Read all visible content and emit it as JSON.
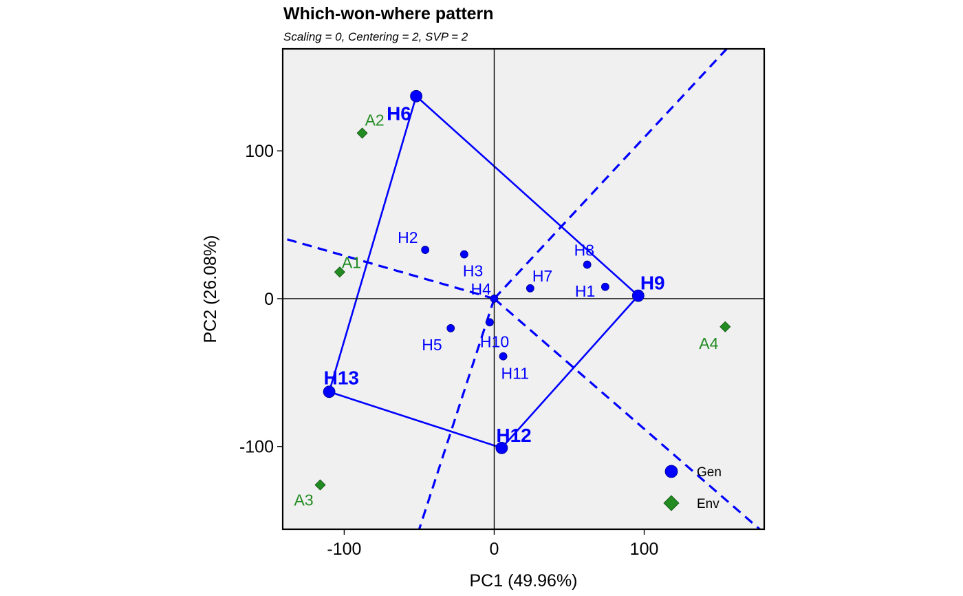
{
  "chart_data": {
    "type": "scatter",
    "title": "Which-won-where pattern",
    "subtitle": "Scaling = 0, Centering = 2, SVP = 2",
    "xlabel": "PC1 (49.96%)",
    "ylabel": "PC2 (26.08%)",
    "xlim": [
      -141,
      180
    ],
    "ylim": [
      -156,
      169
    ],
    "xticks": [
      -100,
      0,
      100
    ],
    "yticks": [
      -100,
      0,
      100
    ],
    "grid": false,
    "legend_position": "bottom-right",
    "colors": {
      "gen": "#0000ff",
      "env": "#228b22",
      "panel": "#f0f0f0"
    },
    "legend": [
      {
        "label": "Gen",
        "marker": "circle"
      },
      {
        "label": "Env",
        "marker": "diamond"
      }
    ],
    "series": [
      {
        "name": "Gen",
        "points": [
          {
            "label": "H1",
            "x": 74,
            "y": 8,
            "vertex": false
          },
          {
            "label": "H2",
            "x": -46,
            "y": 33,
            "vertex": false
          },
          {
            "label": "H3",
            "x": -20,
            "y": 30,
            "vertex": false
          },
          {
            "label": "H4",
            "x": 0,
            "y": 0,
            "vertex": false
          },
          {
            "label": "H5",
            "x": -29,
            "y": -20,
            "vertex": false
          },
          {
            "label": "H6",
            "x": -52,
            "y": 137,
            "vertex": true
          },
          {
            "label": "H7",
            "x": 24,
            "y": 7,
            "vertex": false
          },
          {
            "label": "H8",
            "x": 62,
            "y": 23,
            "vertex": false
          },
          {
            "label": "H9",
            "x": 96,
            "y": 2,
            "vertex": true
          },
          {
            "label": "H10",
            "x": -3,
            "y": -16,
            "vertex": false
          },
          {
            "label": "H11",
            "x": 6,
            "y": -39,
            "vertex": false
          },
          {
            "label": "H12",
            "x": 5,
            "y": -101,
            "vertex": true
          },
          {
            "label": "H13",
            "x": -110,
            "y": -63,
            "vertex": true
          }
        ]
      },
      {
        "name": "Env",
        "points": [
          {
            "label": "A1",
            "x": -103,
            "y": 18
          },
          {
            "label": "A2",
            "x": -88,
            "y": 112
          },
          {
            "label": "A3",
            "x": -116,
            "y": -126
          },
          {
            "label": "A4",
            "x": 154,
            "y": -19
          }
        ]
      }
    ],
    "polygon": [
      "H6",
      "H9",
      "H12",
      "H13"
    ],
    "sector_lines": [
      {
        "to_x": 155,
        "to_y": 169
      },
      {
        "to_x": -141,
        "to_y": 41
      },
      {
        "to_x": 177,
        "to_y": -156
      },
      {
        "to_x": -50,
        "to_y": -156
      }
    ]
  }
}
